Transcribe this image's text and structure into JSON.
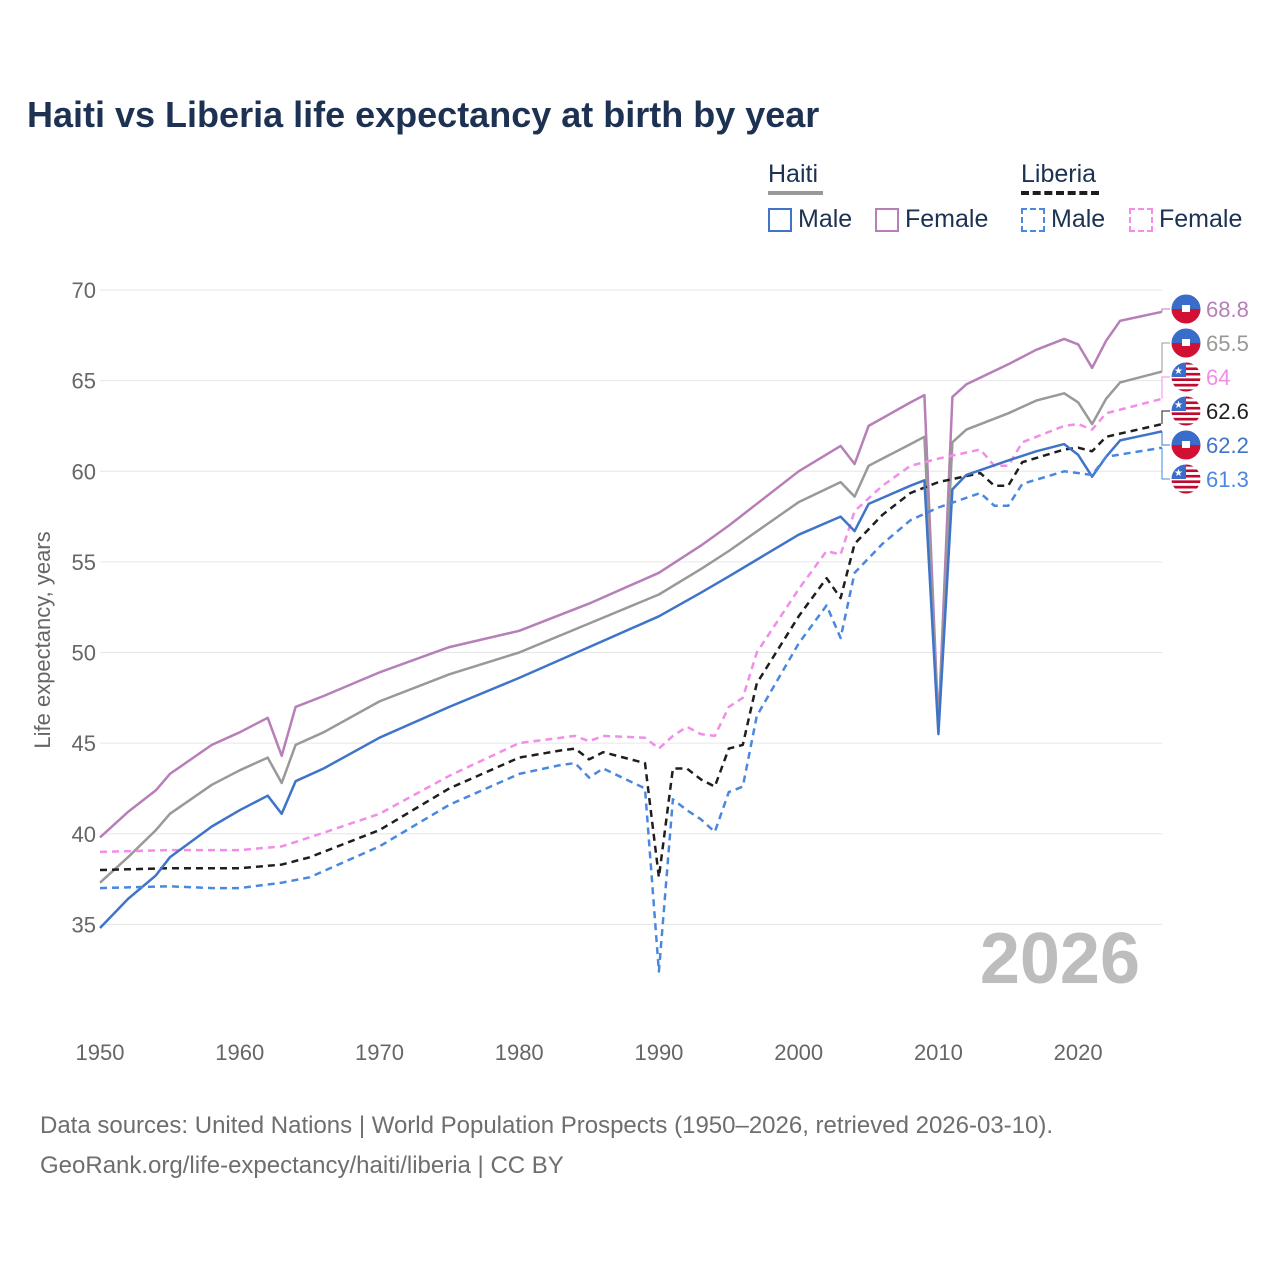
{
  "title": "Haiti vs Liberia life expectancy at birth by year",
  "legend": {
    "haiti_label": "Haiti",
    "liberia_label": "Liberia",
    "haiti_male": "Male",
    "haiti_female": "Female",
    "liberia_male": "Male",
    "liberia_female": "Female"
  },
  "footer": {
    "line1": "Data sources: United Nations | World Population Prospects (1950–2026, retrieved 2026-03-10).",
    "line2": "GeoRank.org/life-expectancy/haiti/liberia | CC BY"
  },
  "colors": {
    "haiti_total": "#999999",
    "haiti_male": "#3f74c9",
    "haiti_female": "#b77fb8",
    "liberia_total": "#1e1e1e",
    "liberia_male": "#4a88e0",
    "liberia_female": "#f28de8"
  },
  "chart_data": {
    "type": "line",
    "title": "Haiti vs Liberia life expectancy at birth by year",
    "xlabel": "",
    "ylabel": "Life expectancy, years",
    "xlim": [
      1950,
      2026
    ],
    "ylim": [
      30,
      70
    ],
    "yticks": [
      35,
      40,
      45,
      50,
      55,
      60,
      65,
      70
    ],
    "xticks": [
      1950,
      1960,
      1970,
      1980,
      1990,
      2000,
      2010,
      2020
    ],
    "year_label": "2026",
    "series": [
      {
        "key": "haiti_female",
        "name": "Haiti Female",
        "country": "haiti",
        "dashed": false,
        "end_label": "68.8",
        "points": [
          [
            1950,
            39.8
          ],
          [
            1952,
            41.2
          ],
          [
            1954,
            42.4
          ],
          [
            1955,
            43.3
          ],
          [
            1958,
            44.9
          ],
          [
            1960,
            45.6
          ],
          [
            1962,
            46.4
          ],
          [
            1963,
            44.3
          ],
          [
            1964,
            47.0
          ],
          [
            1966,
            47.6
          ],
          [
            1970,
            48.9
          ],
          [
            1975,
            50.3
          ],
          [
            1980,
            51.2
          ],
          [
            1985,
            52.7
          ],
          [
            1990,
            54.4
          ],
          [
            1993,
            55.9
          ],
          [
            1995,
            57.0
          ],
          [
            2000,
            60.0
          ],
          [
            2003,
            61.4
          ],
          [
            2004,
            60.4
          ],
          [
            2005,
            62.5
          ],
          [
            2008,
            63.8
          ],
          [
            2009,
            64.2
          ],
          [
            2010,
            46.0
          ],
          [
            2011,
            64.1
          ],
          [
            2012,
            64.8
          ],
          [
            2015,
            65.9
          ],
          [
            2017,
            66.7
          ],
          [
            2019,
            67.3
          ],
          [
            2020,
            67.0
          ],
          [
            2021,
            65.7
          ],
          [
            2022,
            67.2
          ],
          [
            2023,
            68.3
          ],
          [
            2026,
            68.8
          ]
        ]
      },
      {
        "key": "haiti_total",
        "name": "Haiti",
        "country": "haiti",
        "dashed": false,
        "end_label": "65.5",
        "points": [
          [
            1950,
            37.3
          ],
          [
            1952,
            38.7
          ],
          [
            1954,
            40.2
          ],
          [
            1955,
            41.1
          ],
          [
            1958,
            42.7
          ],
          [
            1960,
            43.5
          ],
          [
            1962,
            44.2
          ],
          [
            1963,
            42.8
          ],
          [
            1964,
            44.9
          ],
          [
            1966,
            45.6
          ],
          [
            1970,
            47.3
          ],
          [
            1975,
            48.8
          ],
          [
            1980,
            50.0
          ],
          [
            1985,
            51.6
          ],
          [
            1990,
            53.2
          ],
          [
            1993,
            54.6
          ],
          [
            1995,
            55.6
          ],
          [
            2000,
            58.3
          ],
          [
            2003,
            59.4
          ],
          [
            2004,
            58.6
          ],
          [
            2005,
            60.3
          ],
          [
            2008,
            61.5
          ],
          [
            2009,
            61.9
          ],
          [
            2010,
            45.8
          ],
          [
            2011,
            61.6
          ],
          [
            2012,
            62.3
          ],
          [
            2015,
            63.2
          ],
          [
            2017,
            63.9
          ],
          [
            2019,
            64.3
          ],
          [
            2020,
            63.8
          ],
          [
            2021,
            62.6
          ],
          [
            2022,
            64.0
          ],
          [
            2023,
            64.9
          ],
          [
            2026,
            65.5
          ]
        ]
      },
      {
        "key": "liberia_female",
        "name": "Liberia Female",
        "country": "liberia",
        "dashed": true,
        "end_label": "64",
        "points": [
          [
            1950,
            39.0
          ],
          [
            1955,
            39.1
          ],
          [
            1960,
            39.1
          ],
          [
            1963,
            39.3
          ],
          [
            1965,
            39.8
          ],
          [
            1970,
            41.1
          ],
          [
            1975,
            43.2
          ],
          [
            1980,
            45.0
          ],
          [
            1983,
            45.3
          ],
          [
            1984,
            45.4
          ],
          [
            1985,
            45.1
          ],
          [
            1986,
            45.4
          ],
          [
            1989,
            45.3
          ],
          [
            1990,
            44.7
          ],
          [
            1991,
            45.4
          ],
          [
            1992,
            45.9
          ],
          [
            1993,
            45.5
          ],
          [
            1994,
            45.4
          ],
          [
            1995,
            47.0
          ],
          [
            1996,
            47.5
          ],
          [
            1997,
            50.0
          ],
          [
            2000,
            53.5
          ],
          [
            2002,
            55.6
          ],
          [
            2003,
            55.4
          ],
          [
            2004,
            57.8
          ],
          [
            2006,
            59.2
          ],
          [
            2008,
            60.3
          ],
          [
            2010,
            60.7
          ],
          [
            2013,
            61.2
          ],
          [
            2014,
            60.3
          ],
          [
            2015,
            60.3
          ],
          [
            2016,
            61.6
          ],
          [
            2019,
            62.5
          ],
          [
            2020,
            62.6
          ],
          [
            2021,
            62.3
          ],
          [
            2022,
            63.2
          ],
          [
            2026,
            64.0
          ]
        ]
      },
      {
        "key": "liberia_total",
        "name": "Liberia",
        "country": "liberia",
        "dashed": true,
        "end_label": "62.6",
        "points": [
          [
            1950,
            38.0
          ],
          [
            1955,
            38.1
          ],
          [
            1960,
            38.1
          ],
          [
            1963,
            38.3
          ],
          [
            1965,
            38.7
          ],
          [
            1970,
            40.2
          ],
          [
            1975,
            42.5
          ],
          [
            1980,
            44.2
          ],
          [
            1983,
            44.6
          ],
          [
            1984,
            44.7
          ],
          [
            1985,
            44.1
          ],
          [
            1986,
            44.5
          ],
          [
            1989,
            43.9
          ],
          [
            1990,
            37.6
          ],
          [
            1991,
            43.6
          ],
          [
            1992,
            43.6
          ],
          [
            1993,
            43.0
          ],
          [
            1994,
            42.6
          ],
          [
            1995,
            44.7
          ],
          [
            1996,
            44.9
          ],
          [
            1997,
            48.3
          ],
          [
            2000,
            52.0
          ],
          [
            2002,
            54.1
          ],
          [
            2003,
            53.0
          ],
          [
            2004,
            56.0
          ],
          [
            2006,
            57.6
          ],
          [
            2008,
            58.8
          ],
          [
            2010,
            59.4
          ],
          [
            2013,
            59.9
          ],
          [
            2014,
            59.2
          ],
          [
            2015,
            59.2
          ],
          [
            2016,
            60.5
          ],
          [
            2019,
            61.2
          ],
          [
            2020,
            61.3
          ],
          [
            2021,
            61.1
          ],
          [
            2022,
            61.9
          ],
          [
            2026,
            62.6
          ]
        ]
      },
      {
        "key": "haiti_male",
        "name": "Haiti Male",
        "country": "haiti",
        "dashed": false,
        "end_label": "62.2",
        "points": [
          [
            1950,
            34.8
          ],
          [
            1952,
            36.4
          ],
          [
            1954,
            37.7
          ],
          [
            1955,
            38.7
          ],
          [
            1958,
            40.4
          ],
          [
            1960,
            41.3
          ],
          [
            1962,
            42.1
          ],
          [
            1963,
            41.1
          ],
          [
            1964,
            42.9
          ],
          [
            1966,
            43.6
          ],
          [
            1970,
            45.3
          ],
          [
            1975,
            47.0
          ],
          [
            1980,
            48.6
          ],
          [
            1985,
            50.3
          ],
          [
            1990,
            52.0
          ],
          [
            1993,
            53.3
          ],
          [
            1995,
            54.2
          ],
          [
            2000,
            56.5
          ],
          [
            2003,
            57.5
          ],
          [
            2004,
            56.7
          ],
          [
            2005,
            58.2
          ],
          [
            2008,
            59.2
          ],
          [
            2009,
            59.5
          ],
          [
            2010,
            45.5
          ],
          [
            2011,
            59.0
          ],
          [
            2012,
            59.8
          ],
          [
            2015,
            60.6
          ],
          [
            2017,
            61.1
          ],
          [
            2019,
            61.5
          ],
          [
            2020,
            60.9
          ],
          [
            2021,
            59.7
          ],
          [
            2022,
            60.8
          ],
          [
            2023,
            61.7
          ],
          [
            2026,
            62.2
          ]
        ]
      },
      {
        "key": "liberia_male",
        "name": "Liberia Male",
        "country": "liberia",
        "dashed": true,
        "end_label": "61.3",
        "points": [
          [
            1950,
            37.0
          ],
          [
            1955,
            37.1
          ],
          [
            1958,
            37.0
          ],
          [
            1960,
            37.0
          ],
          [
            1963,
            37.3
          ],
          [
            1965,
            37.6
          ],
          [
            1970,
            39.3
          ],
          [
            1975,
            41.6
          ],
          [
            1980,
            43.3
          ],
          [
            1983,
            43.8
          ],
          [
            1984,
            43.9
          ],
          [
            1985,
            43.1
          ],
          [
            1986,
            43.6
          ],
          [
            1989,
            42.5
          ],
          [
            1990,
            32.4
          ],
          [
            1991,
            41.9
          ],
          [
            1992,
            41.3
          ],
          [
            1993,
            40.8
          ],
          [
            1994,
            40.1
          ],
          [
            1995,
            42.3
          ],
          [
            1996,
            42.6
          ],
          [
            1997,
            46.5
          ],
          [
            2000,
            50.5
          ],
          [
            2002,
            52.6
          ],
          [
            2003,
            50.8
          ],
          [
            2004,
            54.4
          ],
          [
            2006,
            56.0
          ],
          [
            2008,
            57.3
          ],
          [
            2010,
            58.0
          ],
          [
            2013,
            58.8
          ],
          [
            2014,
            58.1
          ],
          [
            2015,
            58.1
          ],
          [
            2016,
            59.3
          ],
          [
            2019,
            60.0
          ],
          [
            2020,
            59.9
          ],
          [
            2021,
            59.8
          ],
          [
            2022,
            60.8
          ],
          [
            2026,
            61.3
          ]
        ]
      }
    ]
  }
}
